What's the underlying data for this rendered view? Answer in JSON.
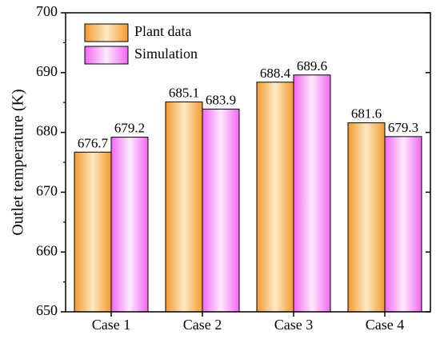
{
  "chart_data": {
    "type": "bar",
    "title": "",
    "xlabel": "",
    "ylabel": "Outlet temperature (K)",
    "categories": [
      "Case 1",
      "Case 2",
      "Case 3",
      "Case 4"
    ],
    "series": [
      {
        "name": "Plant data",
        "values": [
          676.7,
          685.1,
          688.4,
          681.6
        ],
        "labels": [
          "676.7",
          "685.1",
          "688.4",
          "681.6"
        ],
        "color": "#f3a23c"
      },
      {
        "name": "Simulation",
        "values": [
          679.2,
          683.9,
          689.6,
          679.3
        ],
        "labels": [
          "679.2",
          "683.9",
          "689.6",
          "679.3"
        ],
        "color": "#f36cf3"
      }
    ],
    "ylim": [
      650,
      700
    ],
    "yticks": [
      650,
      660,
      670,
      680,
      690,
      700
    ],
    "ytick_labels": [
      "650",
      "660",
      "670",
      "680",
      "690",
      "700"
    ],
    "grid": false,
    "legend_position": "top-left"
  }
}
